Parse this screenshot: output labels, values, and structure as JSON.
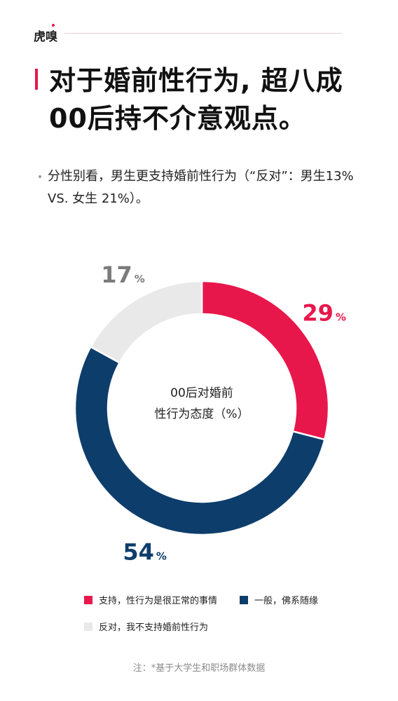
{
  "brand": {
    "logo_text": "虎嗅"
  },
  "title": "对于婚前性行为, 超八成00后持不介意观点。",
  "subtitle": "分性别看，男生更支持婚前性行为（“反对”：男生13% VS. 女生 21%）。",
  "chart_data": {
    "type": "pie",
    "variant": "donut",
    "center_label_lines": [
      "00后对婚前",
      "性行为态度（%）"
    ],
    "slices": [
      {
        "label": "支持，性行为是很正常的事情",
        "value": 29,
        "display": "29",
        "unit": "%",
        "color": "#e8174b"
      },
      {
        "label": "一般，佛系随缘",
        "value": 54,
        "display": "54",
        "unit": "%",
        "color": "#0d3d6b"
      },
      {
        "label": "反对，我不支持婚前性行为",
        "value": 17,
        "display": "17",
        "unit": "%",
        "color": "#e9e9e9"
      }
    ],
    "label_colors": [
      "#e8174b",
      "#0d3d6b",
      "#7b7b7b"
    ],
    "start_angle_deg": 0,
    "direction": "clockwise",
    "legend_position": "bottom"
  },
  "footnote": "注：*基于大学生和职场群体数据"
}
